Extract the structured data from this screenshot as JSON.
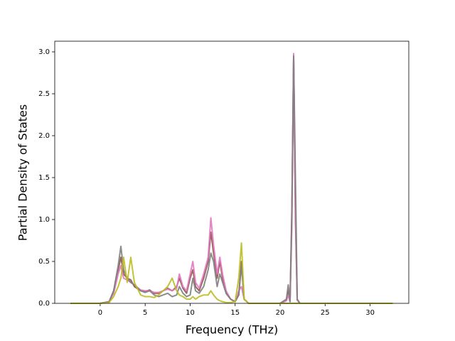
{
  "chart_data": {
    "type": "line",
    "xlabel": "Frequency (THz)",
    "ylabel": "Partial Density of States",
    "x": [
      -3.3,
      0,
      1,
      1.5,
      2,
      2.3,
      2.6,
      3,
      3.4,
      3.8,
      4.5,
      5,
      5.5,
      6,
      6.5,
      7,
      7.5,
      8,
      8.5,
      8.8,
      9.2,
      9.6,
      10,
      10.3,
      10.6,
      11,
      11.5,
      12,
      12.3,
      12.6,
      13,
      13.3,
      13.6,
      14,
      14.5,
      15,
      15.4,
      15.7,
      16,
      16.5,
      20,
      20.7,
      20.9,
      21.1,
      21.3,
      21.5,
      21.7,
      21.9,
      22.2,
      23,
      32.5
    ],
    "series": [
      {
        "color": "#8c564b",
        "values": [
          0,
          0,
          0.02,
          0.15,
          0.4,
          0.55,
          0.35,
          0.3,
          0.28,
          0.2,
          0.15,
          0.14,
          0.16,
          0.12,
          0.12,
          0.15,
          0.18,
          0.15,
          0.2,
          0.3,
          0.18,
          0.12,
          0.3,
          0.4,
          0.2,
          0.15,
          0.3,
          0.5,
          0.85,
          0.6,
          0.3,
          0.5,
          0.3,
          0.12,
          0.05,
          0.02,
          0.1,
          0.5,
          0.05,
          0,
          0,
          0.04,
          0.15,
          0.02,
          1.1,
          2.95,
          1.0,
          0.04,
          0,
          0,
          0
        ]
      },
      {
        "color": "#e377c2",
        "values": [
          0,
          0,
          0.02,
          0.12,
          0.35,
          0.45,
          0.3,
          0.28,
          0.25,
          0.22,
          0.16,
          0.15,
          0.15,
          0.13,
          0.13,
          0.15,
          0.17,
          0.15,
          0.18,
          0.35,
          0.2,
          0.15,
          0.35,
          0.5,
          0.25,
          0.18,
          0.35,
          0.55,
          1.02,
          0.7,
          0.35,
          0.55,
          0.35,
          0.15,
          0.05,
          0.02,
          0.15,
          0.2,
          0.05,
          0,
          0,
          0.03,
          0.1,
          0.02,
          0.9,
          2.98,
          1.1,
          0.04,
          0,
          0,
          0
        ]
      },
      {
        "color": "#7f7f7f",
        "values": [
          0,
          0,
          0.02,
          0.15,
          0.45,
          0.68,
          0.4,
          0.3,
          0.25,
          0.22,
          0.15,
          0.13,
          0.15,
          0.1,
          0.08,
          0.1,
          0.12,
          0.08,
          0.1,
          0.2,
          0.12,
          0.08,
          0.1,
          0.3,
          0.15,
          0.12,
          0.2,
          0.4,
          0.6,
          0.5,
          0.2,
          0.35,
          0.25,
          0.12,
          0.05,
          0.02,
          0.1,
          0.45,
          0.05,
          0,
          0,
          0.05,
          0.22,
          0.02,
          1.0,
          2.95,
          1.5,
          0.05,
          0,
          0,
          0
        ]
      },
      {
        "color": "#bcbd22",
        "values": [
          0,
          0,
          0.01,
          0.08,
          0.2,
          0.3,
          0.55,
          0.25,
          0.55,
          0.25,
          0.1,
          0.08,
          0.08,
          0.07,
          0.1,
          0.15,
          0.2,
          0.3,
          0.15,
          0.1,
          0.08,
          0.05,
          0.05,
          0.08,
          0.05,
          0.08,
          0.1,
          0.1,
          0.15,
          0.1,
          0.05,
          0.03,
          0.02,
          0.01,
          0.01,
          0.02,
          0.3,
          0.72,
          0.05,
          0,
          0,
          0,
          0,
          0,
          0,
          0,
          0,
          0,
          0,
          0,
          0
        ]
      }
    ],
    "xlim": [
      -5.05,
      34.3
    ],
    "ylim": [
      0,
      3.127
    ],
    "xticks": [
      0,
      5,
      10,
      15,
      20,
      25,
      30
    ],
    "yticks": [
      {
        "value": 0,
        "label": "0.0"
      },
      {
        "value": 0.5,
        "label": "0.5"
      },
      {
        "value": 1,
        "label": "1.0"
      },
      {
        "value": 1.5,
        "label": "1.5"
      },
      {
        "value": 2,
        "label": "2.0"
      },
      {
        "value": 2.5,
        "label": "2.5"
      },
      {
        "value": 3,
        "label": "3.0"
      }
    ]
  }
}
